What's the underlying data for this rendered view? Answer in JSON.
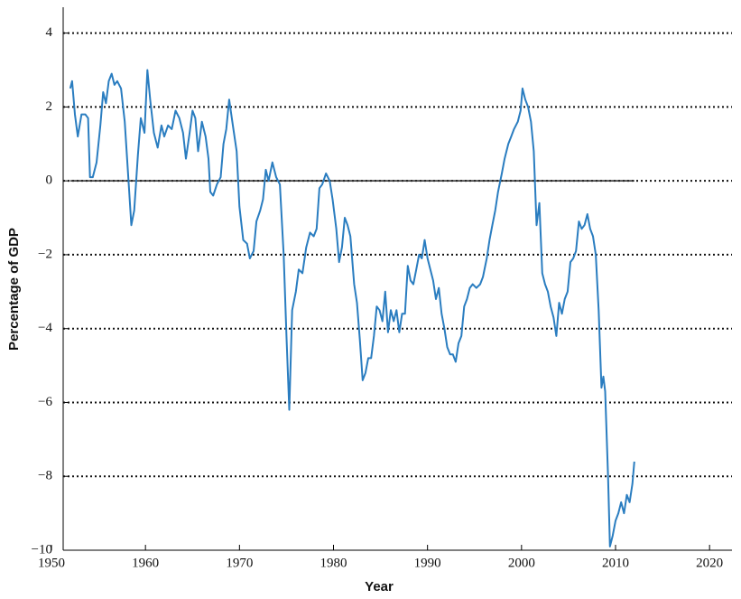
{
  "chart_data": {
    "type": "line",
    "x_label": "Year",
    "y_label": "Percentage of GDP",
    "x": [
      1952.0,
      1952.2,
      1952.5,
      1952.8,
      1953.2,
      1953.6,
      1953.9,
      1954.1,
      1954.4,
      1954.8,
      1955.2,
      1955.5,
      1955.8,
      1956.1,
      1956.4,
      1956.7,
      1957.0,
      1957.4,
      1957.8,
      1958.2,
      1958.5,
      1958.8,
      1959.2,
      1959.5,
      1959.9,
      1960.2,
      1960.5,
      1960.9,
      1961.3,
      1961.7,
      1962.0,
      1962.4,
      1962.8,
      1963.2,
      1963.6,
      1964.0,
      1964.3,
      1964.7,
      1965.0,
      1965.3,
      1965.6,
      1966.0,
      1966.4,
      1966.7,
      1966.9,
      1967.2,
      1967.6,
      1968.0,
      1968.3,
      1968.6,
      1968.9,
      1969.3,
      1969.7,
      1970.0,
      1970.4,
      1970.8,
      1971.1,
      1971.5,
      1971.8,
      1972.2,
      1972.5,
      1972.8,
      1973.1,
      1973.5,
      1973.9,
      1974.3,
      1974.7,
      1975.0,
      1975.3,
      1975.6,
      1976.0,
      1976.3,
      1976.7,
      1977.1,
      1977.5,
      1977.9,
      1978.2,
      1978.5,
      1978.8,
      1979.2,
      1979.6,
      1979.9,
      1980.3,
      1980.6,
      1980.9,
      1981.2,
      1981.5,
      1981.8,
      1982.2,
      1982.5,
      1982.8,
      1983.1,
      1983.4,
      1983.7,
      1984.0,
      1984.3,
      1984.6,
      1984.9,
      1985.2,
      1985.5,
      1985.8,
      1986.1,
      1986.4,
      1986.7,
      1987.0,
      1987.3,
      1987.6,
      1987.9,
      1988.2,
      1988.5,
      1988.8,
      1989.1,
      1989.4,
      1989.7,
      1990.0,
      1990.3,
      1990.6,
      1990.9,
      1991.2,
      1991.5,
      1991.8,
      1992.1,
      1992.4,
      1992.7,
      1993.0,
      1993.3,
      1993.6,
      1993.9,
      1994.2,
      1994.5,
      1994.8,
      1995.2,
      1995.6,
      1995.9,
      1996.3,
      1996.6,
      1996.9,
      1997.2,
      1997.5,
      1997.9,
      1998.2,
      1998.6,
      1998.9,
      1999.2,
      1999.6,
      1999.9,
      2000.1,
      2000.4,
      2000.7,
      2001.0,
      2001.3,
      2001.6,
      2001.9,
      2002.2,
      2002.5,
      2002.8,
      2003.1,
      2003.4,
      2003.7,
      2004.0,
      2004.3,
      2004.6,
      2004.9,
      2005.2,
      2005.5,
      2005.8,
      2006.1,
      2006.4,
      2006.7,
      2007.0,
      2007.3,
      2007.6,
      2007.9,
      2008.2,
      2008.5,
      2008.7,
      2008.9,
      2009.2,
      2009.4,
      2009.7,
      2010.0,
      2010.3,
      2010.6,
      2010.9,
      2011.2,
      2011.5,
      2011.8,
      2012.0
    ],
    "series": [
      {
        "color": "#2a7dc0",
        "values": [
          2.5,
          2.7,
          1.8,
          1.2,
          1.8,
          1.8,
          1.7,
          0.1,
          0.1,
          0.5,
          1.5,
          2.4,
          2.1,
          2.7,
          2.9,
          2.6,
          2.7,
          2.5,
          1.6,
          0.0,
          -1.2,
          -0.8,
          0.7,
          1.7,
          1.3,
          3.0,
          2.2,
          1.3,
          0.9,
          1.5,
          1.2,
          1.5,
          1.4,
          1.9,
          1.7,
          1.3,
          0.6,
          1.3,
          1.9,
          1.7,
          0.8,
          1.6,
          1.2,
          0.6,
          -0.3,
          -0.4,
          -0.1,
          0.1,
          1.0,
          1.4,
          2.2,
          1.5,
          0.8,
          -0.7,
          -1.6,
          -1.7,
          -2.1,
          -1.9,
          -1.1,
          -0.8,
          -0.5,
          0.3,
          0.0,
          0.5,
          0.1,
          -0.1,
          -2.0,
          -4.2,
          -6.2,
          -3.5,
          -3.0,
          -2.4,
          -2.5,
          -1.8,
          -1.4,
          -1.5,
          -1.3,
          -0.2,
          -0.1,
          0.2,
          0.0,
          -0.5,
          -1.3,
          -2.2,
          -1.8,
          -1.0,
          -1.2,
          -1.5,
          -2.8,
          -3.3,
          -4.3,
          -5.4,
          -5.2,
          -4.8,
          -4.8,
          -4.2,
          -3.4,
          -3.5,
          -3.8,
          -3.0,
          -4.1,
          -3.5,
          -3.8,
          -3.5,
          -4.1,
          -3.6,
          -3.6,
          -2.3,
          -2.7,
          -2.8,
          -2.4,
          -2.0,
          -2.1,
          -1.6,
          -2.1,
          -2.4,
          -2.7,
          -3.2,
          -2.9,
          -3.6,
          -4.0,
          -4.5,
          -4.7,
          -4.7,
          -4.9,
          -4.4,
          -4.2,
          -3.4,
          -3.2,
          -2.9,
          -2.8,
          -2.9,
          -2.8,
          -2.6,
          -2.1,
          -1.6,
          -1.2,
          -0.8,
          -0.3,
          0.2,
          0.6,
          1.0,
          1.2,
          1.4,
          1.6,
          1.9,
          2.5,
          2.2,
          2.0,
          1.6,
          0.8,
          -1.2,
          -0.6,
          -2.5,
          -2.8,
          -3.0,
          -3.4,
          -3.7,
          -4.2,
          -3.3,
          -3.6,
          -3.2,
          -3.0,
          -2.2,
          -2.1,
          -1.9,
          -1.1,
          -1.3,
          -1.2,
          -0.9,
          -1.3,
          -1.5,
          -2.0,
          -3.5,
          -5.6,
          -5.3,
          -5.7,
          -8.0,
          -9.9,
          -9.6,
          -9.2,
          -9.0,
          -8.7,
          -9.0,
          -8.5,
          -8.7,
          -8.2,
          -7.6
        ]
      }
    ],
    "xlim": [
      1950,
      2022
    ],
    "xticks": [
      1950,
      1960,
      1970,
      1980,
      1990,
      2000,
      2010,
      2020
    ],
    "ylim": [
      -10,
      4.7
    ],
    "yticks": [
      {
        "value": -10,
        "label": "−10"
      },
      {
        "value": -8,
        "label": "−8"
      },
      {
        "value": -6,
        "label": "−6"
      },
      {
        "value": -4,
        "label": "−4"
      },
      {
        "value": -2,
        "label": "−2"
      },
      0,
      2,
      4
    ],
    "grid": true
  }
}
